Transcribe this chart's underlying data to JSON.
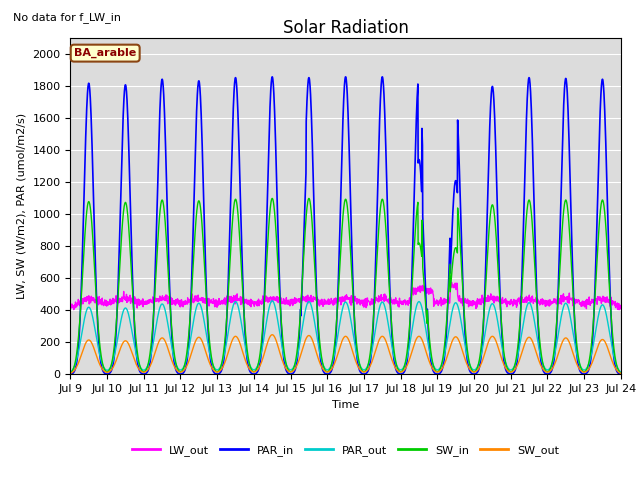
{
  "title": "Solar Radiation",
  "no_data_text": "No data for f_LW_in",
  "annotation_text": "BA_arable",
  "ylabel": "LW, SW (W/m2), PAR (umol/m2/s)",
  "xlabel": "Time",
  "ylim": [
    0,
    2100
  ],
  "yticks": [
    0,
    200,
    400,
    600,
    800,
    1000,
    1200,
    1400,
    1600,
    1800,
    2000
  ],
  "x_start": 9.0,
  "x_end": 24.0,
  "xtick_positions": [
    9,
    10,
    11,
    12,
    13,
    14,
    15,
    16,
    17,
    18,
    19,
    20,
    21,
    22,
    23,
    24
  ],
  "xtick_labels": [
    "Jul 9",
    "Jul 10",
    "Jul 11",
    "Jul 12",
    "Jul 13",
    "Jul 14",
    "Jul 15",
    "Jul 16",
    "Jul 17",
    "Jul 18",
    "Jul 19",
    "Jul 20",
    "Jul 21",
    "Jul 22",
    "Jul 23",
    "Jul 24"
  ],
  "series": {
    "LW_out": {
      "color": "#ff00ff",
      "linewidth": 1.0
    },
    "PAR_in": {
      "color": "#0000ff",
      "linewidth": 1.2
    },
    "PAR_out": {
      "color": "#00cccc",
      "linewidth": 1.0
    },
    "SW_in": {
      "color": "#00cc00",
      "linewidth": 1.0
    },
    "SW_out": {
      "color": "#ff8800",
      "linewidth": 1.0
    }
  },
  "background_color": "#dcdcdc",
  "figure_background": "#ffffff",
  "title_fontsize": 12,
  "label_fontsize": 8,
  "tick_fontsize": 8,
  "legend_fontsize": 8,
  "par_in_peaks": [
    1820,
    1810,
    1845,
    1835,
    1855,
    1860,
    1855,
    1860,
    1860,
    1865,
    1730,
    1800,
    1855,
    1850,
    1845
  ],
  "sw_in_peaks": [
    1080,
    1075,
    1090,
    1085,
    1095,
    1100,
    1100,
    1095,
    1095,
    1095,
    1100,
    1060,
    1090,
    1090,
    1090
  ],
  "par_out_peaks": [
    420,
    415,
    440,
    445,
    455,
    460,
    455,
    452,
    452,
    455,
    448,
    442,
    448,
    445,
    435
  ],
  "sw_out_peaks": [
    215,
    210,
    228,
    232,
    238,
    248,
    243,
    238,
    238,
    238,
    235,
    238,
    232,
    228,
    218
  ],
  "lw_base": 385,
  "lw_day_bump": 85
}
